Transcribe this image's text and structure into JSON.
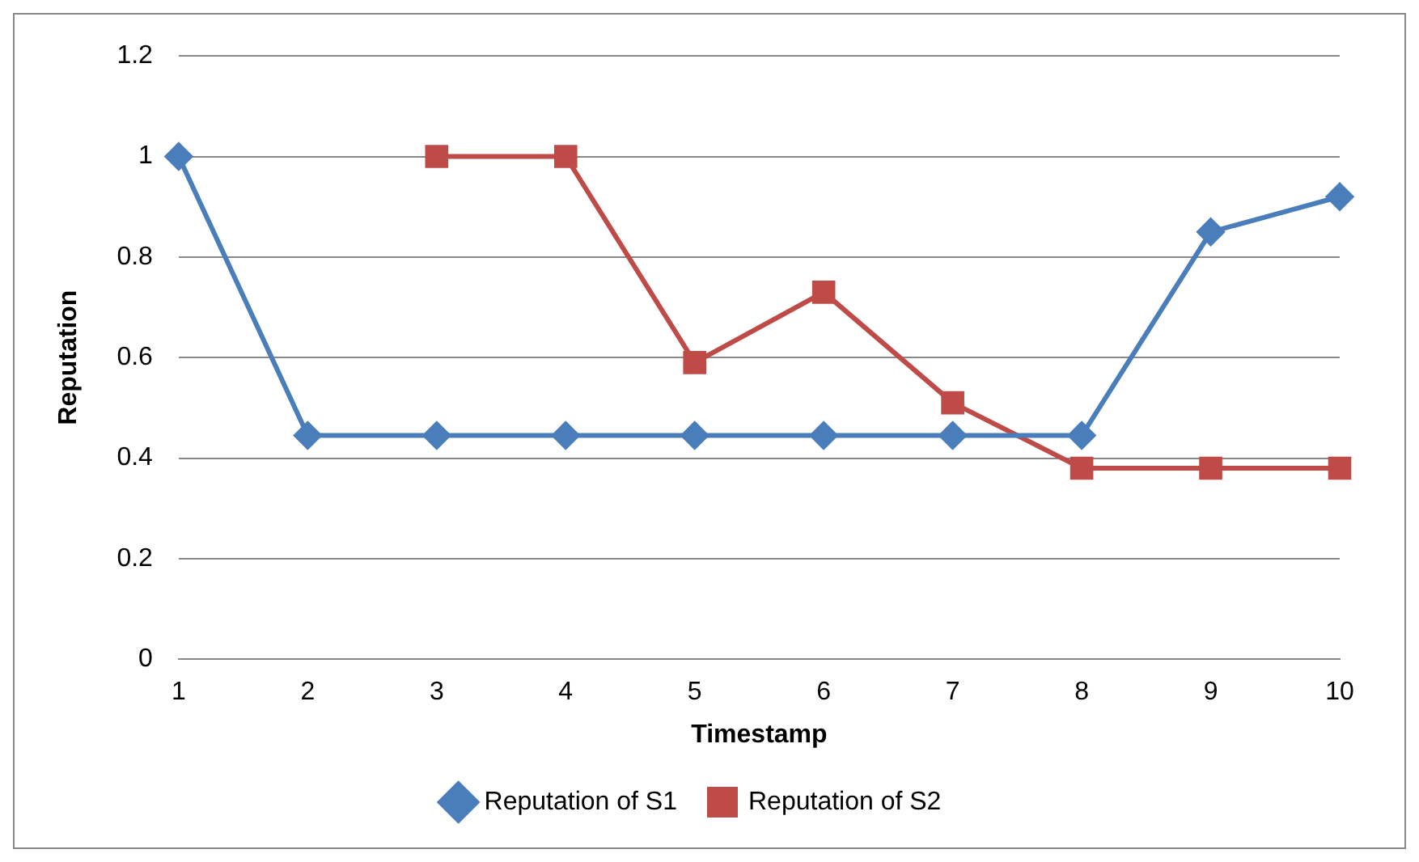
{
  "chart_data": {
    "type": "line",
    "xlabel": "Timestamp",
    "ylabel": "Reputation",
    "categories": [
      "1",
      "2",
      "3",
      "4",
      "5",
      "6",
      "7",
      "8",
      "9",
      "10"
    ],
    "series": [
      {
        "name": "Reputation of S1",
        "color": "#4a7ebb",
        "marker": "diamond",
        "values": [
          1,
          0.445,
          0.445,
          0.445,
          0.445,
          0.445,
          0.445,
          0.445,
          0.85,
          0.92
        ]
      },
      {
        "name": "Reputation of S2",
        "color": "#be4b48",
        "marker": "square",
        "values": [
          null,
          null,
          1,
          1,
          0.59,
          0.73,
          0.51,
          0.38,
          0.38,
          0.38
        ]
      }
    ],
    "ylim": [
      0,
      1.2
    ],
    "yticks": [
      0,
      0.2,
      0.4,
      0.6,
      0.8,
      1,
      1.2
    ],
    "grid": "y",
    "legend": "bottom"
  }
}
